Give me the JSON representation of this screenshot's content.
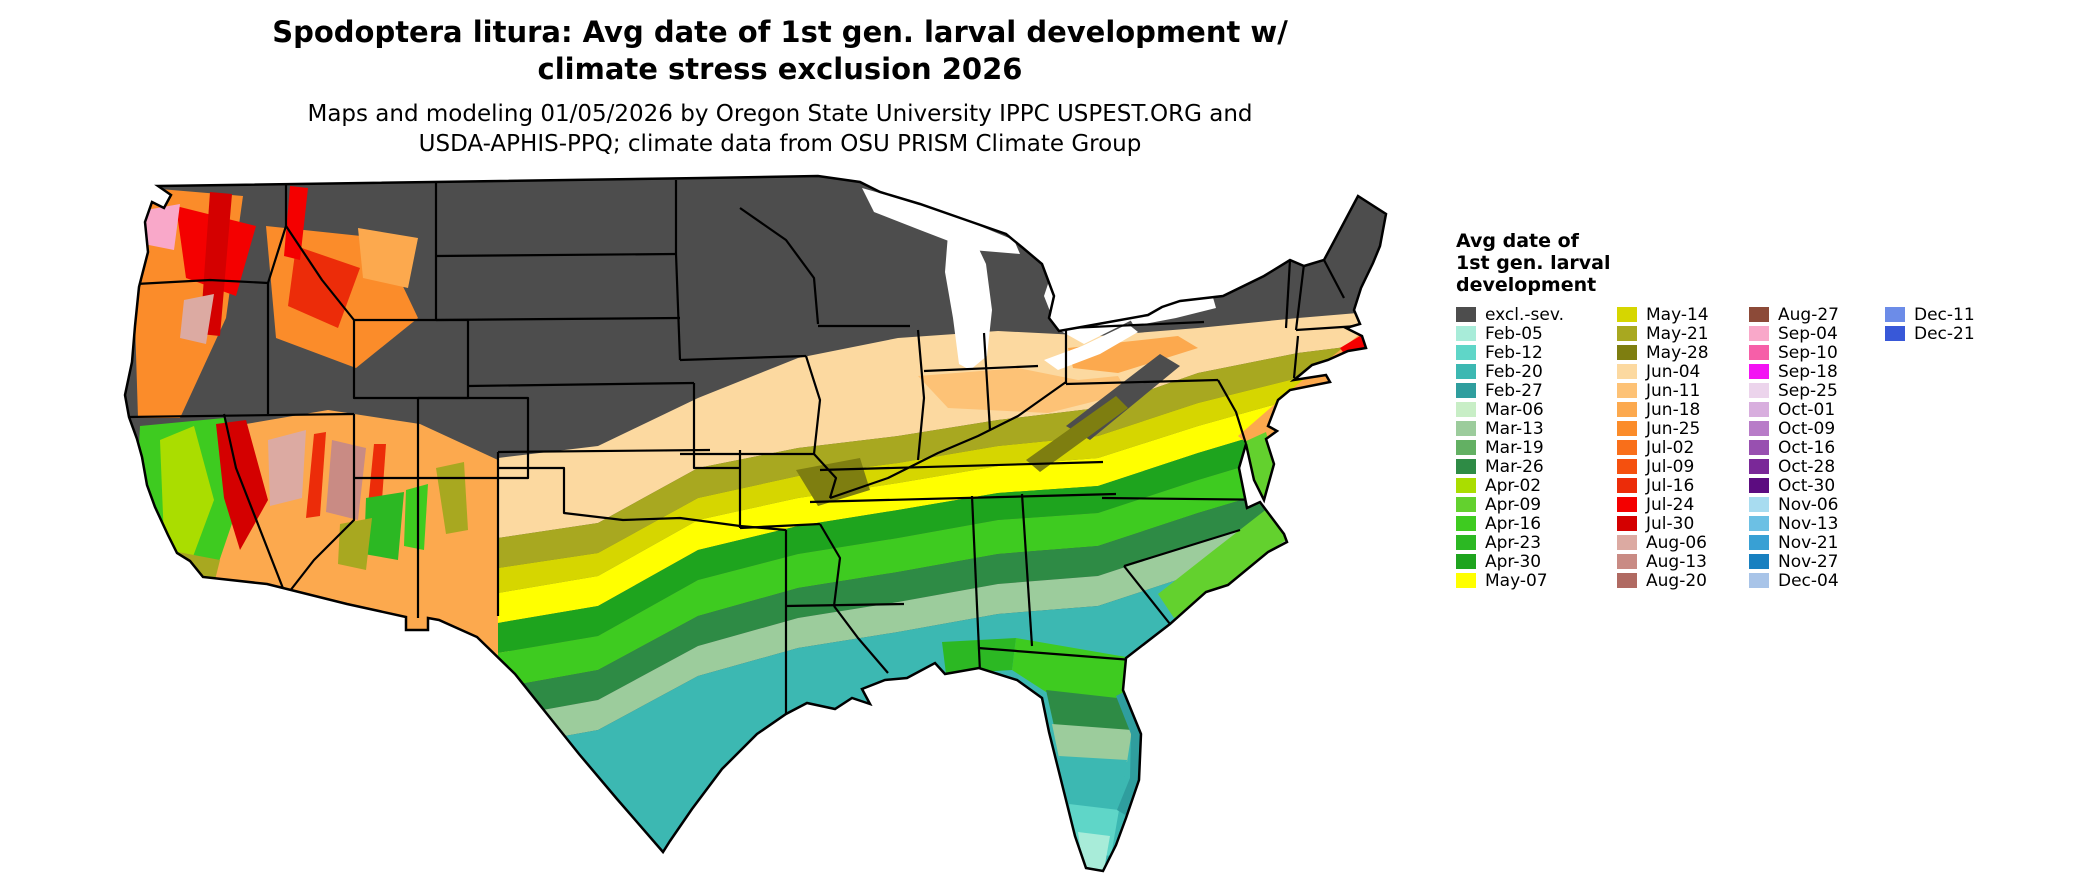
{
  "header": {
    "title_line1": "Spodoptera litura: Avg date of 1st gen. larval development w/",
    "title_line2": "climate stress exclusion 2026",
    "subtitle_line1": "Maps and modeling 01/05/2026 by Oregon State University IPPC USPEST.ORG and",
    "subtitle_line2": "USDA-APHIS-PPQ; climate data from OSU PRISM Climate Group"
  },
  "legend": {
    "title_lines": [
      "Avg date of",
      "1st gen. larval",
      "development"
    ],
    "column_sizes": [
      15,
      15,
      15,
      2
    ],
    "entries": [
      {
        "label": "excl.-sev.",
        "color": "#4d4d4d"
      },
      {
        "label": "Feb-05",
        "color": "#a8ecd9"
      },
      {
        "label": "Feb-12",
        "color": "#5fd6c8"
      },
      {
        "label": "Feb-20",
        "color": "#3cb8b2"
      },
      {
        "label": "Feb-27",
        "color": "#2f9e9e"
      },
      {
        "label": "Mar-06",
        "color": "#c8eec6"
      },
      {
        "label": "Mar-13",
        "color": "#9ccc9c"
      },
      {
        "label": "Mar-19",
        "color": "#63b063"
      },
      {
        "label": "Mar-26",
        "color": "#2e8b45"
      },
      {
        "label": "Apr-02",
        "color": "#aadd00"
      },
      {
        "label": "Apr-09",
        "color": "#63d12e"
      },
      {
        "label": "Apr-16",
        "color": "#3ecb20"
      },
      {
        "label": "Apr-23",
        "color": "#2cb823"
      },
      {
        "label": "Apr-30",
        "color": "#1ea41e"
      },
      {
        "label": "May-07",
        "color": "#ffff00"
      },
      {
        "label": "May-14",
        "color": "#d6d600"
      },
      {
        "label": "May-21",
        "color": "#a8a820"
      },
      {
        "label": "May-28",
        "color": "#7e7e10"
      },
      {
        "label": "Jun-04",
        "color": "#fcd9a0"
      },
      {
        "label": "Jun-11",
        "color": "#fdc276"
      },
      {
        "label": "Jun-18",
        "color": "#fca94e"
      },
      {
        "label": "Jun-25",
        "color": "#fb8c2a"
      },
      {
        "label": "Jul-02",
        "color": "#f96f1a"
      },
      {
        "label": "Jul-09",
        "color": "#f5500e"
      },
      {
        "label": "Jul-16",
        "color": "#ec2c09"
      },
      {
        "label": "Jul-24",
        "color": "#f40000"
      },
      {
        "label": "Jul-30",
        "color": "#d40000"
      },
      {
        "label": "Aug-06",
        "color": "#dcaaa2"
      },
      {
        "label": "Aug-13",
        "color": "#c98b84"
      },
      {
        "label": "Aug-20",
        "color": "#b06a62"
      },
      {
        "label": "Aug-27",
        "color": "#8c4a38"
      },
      {
        "label": "Sep-04",
        "color": "#f9a8c9"
      },
      {
        "label": "Sep-10",
        "color": "#f65fa8"
      },
      {
        "label": "Sep-18",
        "color": "#f313f3"
      },
      {
        "label": "Sep-25",
        "color": "#ecd4ec"
      },
      {
        "label": "Oct-01",
        "color": "#d8aede"
      },
      {
        "label": "Oct-09",
        "color": "#b87cc8"
      },
      {
        "label": "Oct-16",
        "color": "#9850b0"
      },
      {
        "label": "Oct-28",
        "color": "#7a2898"
      },
      {
        "label": "Oct-30",
        "color": "#5c0c80"
      },
      {
        "label": "Nov-06",
        "color": "#a8dcf0"
      },
      {
        "label": "Nov-13",
        "color": "#6cc0e4"
      },
      {
        "label": "Nov-21",
        "color": "#38a0d4"
      },
      {
        "label": "Nov-27",
        "color": "#1880c0"
      },
      {
        "label": "Dec-04",
        "color": "#a8c4e8"
      },
      {
        "label": "Dec-11",
        "color": "#6c8ce8"
      },
      {
        "label": "Dec-21",
        "color": "#3858d8"
      }
    ]
  },
  "map": {
    "description": "Continental US raster map of average date of first generation larval development",
    "water_color": "#ffffff",
    "border_color": "#000000"
  }
}
